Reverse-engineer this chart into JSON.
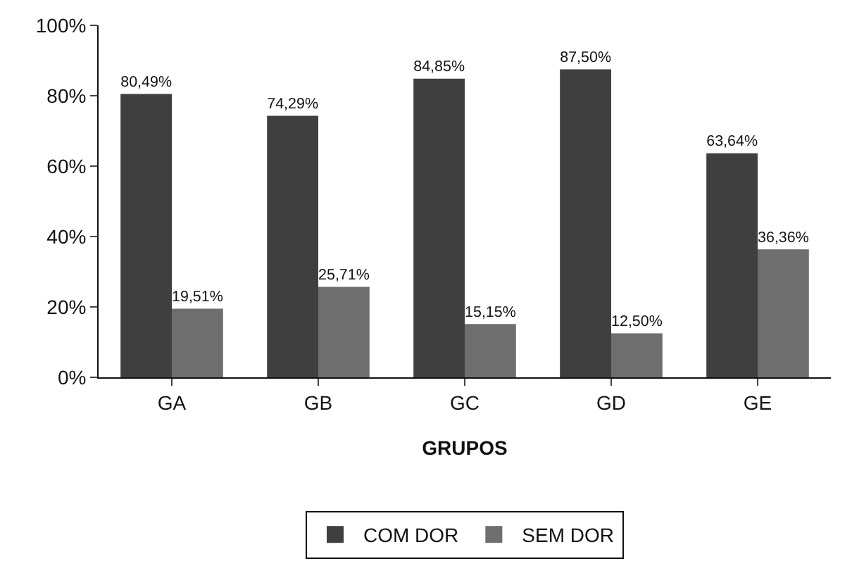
{
  "chart_data": {
    "type": "bar",
    "xlabel": "GRUPOS",
    "categories": [
      "GA",
      "GB",
      "GC",
      "GD",
      "GE"
    ],
    "series": [
      {
        "name": "COM DOR",
        "color": "#3f3f3f",
        "values": [
          80.49,
          74.29,
          84.85,
          87.5,
          63.64
        ],
        "value_labels": [
          "80,49%",
          "74,29%",
          "84,85%",
          "87,50%",
          "63,64%"
        ]
      },
      {
        "name": "SEM DOR",
        "color": "#6e6e6e",
        "values": [
          19.51,
          25.71,
          15.15,
          12.5,
          36.36
        ],
        "value_labels": [
          "19,51%",
          "25,71%",
          "15,15%",
          "12,50%",
          "36,36%"
        ]
      }
    ],
    "ylim": [
      0,
      100
    ],
    "yticks": [
      {
        "value": 0,
        "label": "0%"
      },
      {
        "value": 20,
        "label": "20%"
      },
      {
        "value": 40,
        "label": "40%"
      },
      {
        "value": 60,
        "label": "60%"
      },
      {
        "value": 80,
        "label": "80%"
      },
      {
        "value": 100,
        "label": "100%"
      }
    ],
    "grid": false,
    "legend": "bottom"
  }
}
